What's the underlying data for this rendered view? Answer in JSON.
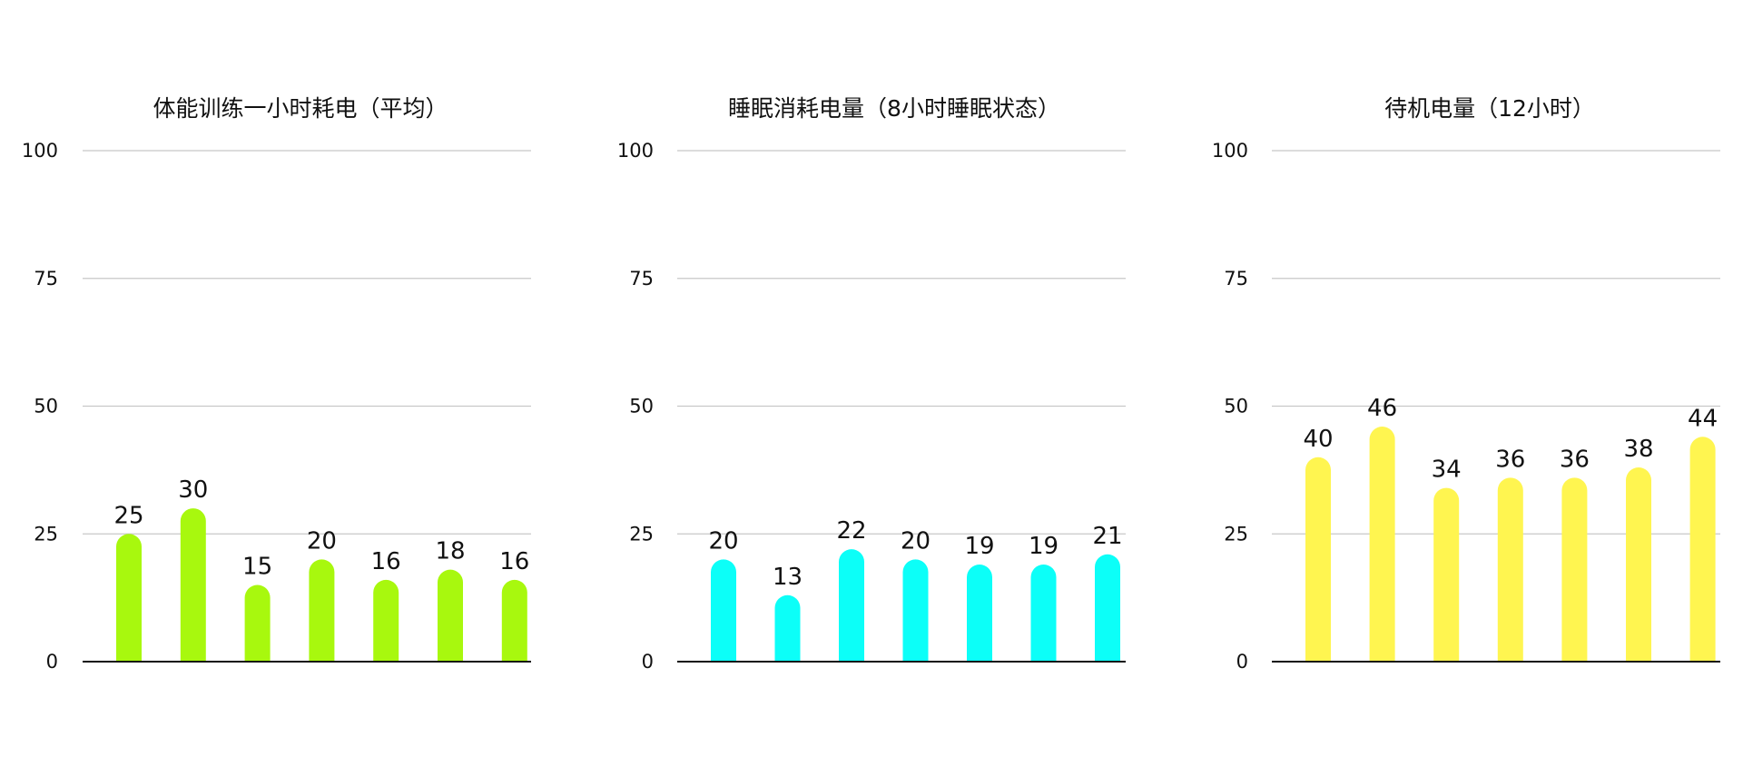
{
  "chart_data": [
    {
      "type": "bar",
      "title": "体能训练一小时耗电（平均）",
      "color": "#A8F80E",
      "ylim": [
        0,
        100
      ],
      "yticks": [
        "0",
        "25",
        "50",
        "75",
        "100"
      ],
      "grid": true,
      "values": [
        25,
        30,
        15,
        20,
        16,
        18,
        16
      ]
    },
    {
      "type": "bar",
      "title": "睡眠消耗电量（8小时睡眠状态）",
      "color": "#0CFFF8",
      "ylim": [
        0,
        100
      ],
      "yticks": [
        "0",
        "25",
        "50",
        "75",
        "100"
      ],
      "grid": true,
      "values": [
        20,
        13,
        22,
        20,
        19,
        19,
        21
      ]
    },
    {
      "type": "bar",
      "title": "待机电量（12小时）",
      "color": "#FFF550",
      "ylim": [
        0,
        100
      ],
      "yticks": [
        "0",
        "25",
        "50",
        "75",
        "100"
      ],
      "grid": true,
      "values": [
        40,
        46,
        34,
        36,
        36,
        38,
        44
      ]
    }
  ]
}
